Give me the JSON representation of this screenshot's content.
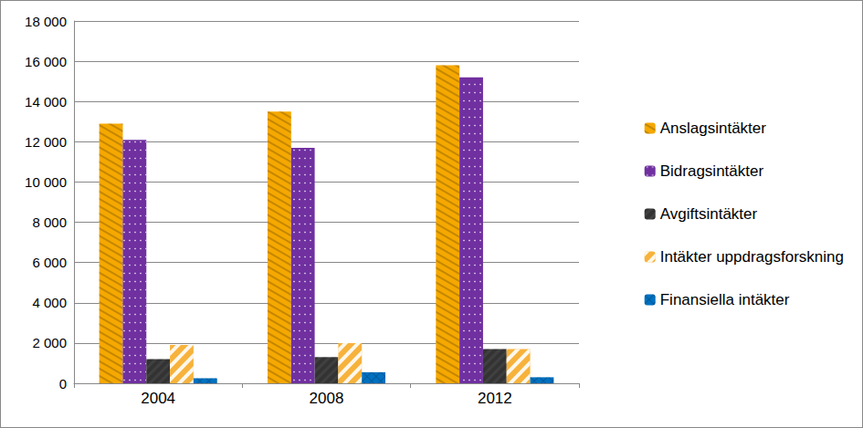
{
  "chart_data": {
    "type": "bar",
    "categories": [
      "2004",
      "2008",
      "2012"
    ],
    "series": [
      {
        "name": "Anslagsintäkter",
        "color": "#F5A800",
        "values": [
          12900,
          13500,
          15800
        ]
      },
      {
        "name": "Bidragsintäkter",
        "color": "#7030A0",
        "values": [
          12100,
          11700,
          15200
        ]
      },
      {
        "name": "Avgiftsintäkter",
        "color": "#404040",
        "values": [
          1200,
          1300,
          1700
        ]
      },
      {
        "name": "Intäkter uppdragsforskning",
        "color": "#F7B23B",
        "values": [
          1900,
          2000,
          1700
        ]
      },
      {
        "name": "Finansiella intäkter",
        "color": "#0070C0",
        "values": [
          250,
          550,
          300
        ]
      }
    ],
    "ylim": [
      0,
      18000
    ],
    "yticks": [
      0,
      {
        "value": 2000,
        "label": "2 000"
      },
      {
        "value": 4000,
        "label": "4 000"
      },
      {
        "value": 6000,
        "label": "6 000"
      },
      {
        "value": 8000,
        "label": "8 000"
      },
      {
        "value": 10000,
        "label": "10 000"
      },
      {
        "value": 12000,
        "label": "12 000"
      },
      {
        "value": 14000,
        "label": "14 000"
      },
      {
        "value": 16000,
        "label": "16 000"
      },
      {
        "value": 18000,
        "label": "18 000"
      }
    ],
    "grid": true,
    "legend": "right"
  }
}
